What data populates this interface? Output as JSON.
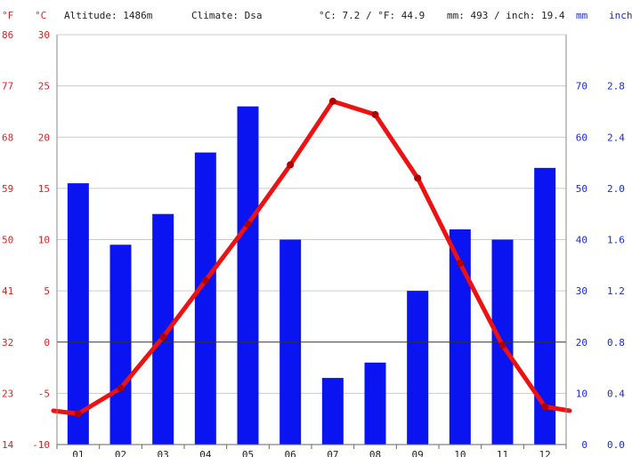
{
  "header": {
    "altitude": "Altitude: 1486m",
    "climate": "Climate: Dsa",
    "temp_avg": "°C: 7.2 / °F: 44.9",
    "precip_avg": "mm: 493 / inch: 19.4"
  },
  "axes": {
    "left_outer_unit": "°F",
    "left_inner_unit": "°C",
    "right_inner_unit": "mm",
    "right_outer_unit": "inch",
    "f_ticks": [
      "86",
      "77",
      "68",
      "59",
      "50",
      "41",
      "32",
      "23",
      "14"
    ],
    "c_ticks": [
      "30",
      "25",
      "20",
      "15",
      "10",
      "5",
      "0",
      "-5",
      "-10"
    ],
    "mm_ticks": [
      "70",
      "60",
      "50",
      "40",
      "30",
      "20",
      "10",
      "0"
    ],
    "inch_ticks": [
      "2.8",
      "2.4",
      "2.0",
      "1.6",
      "1.2",
      "0.8",
      "0.4",
      "0.0"
    ]
  },
  "chart_data": {
    "type": "bar",
    "categories": [
      "01",
      "02",
      "03",
      "04",
      "05",
      "06",
      "07",
      "08",
      "09",
      "10",
      "11",
      "12"
    ],
    "series": [
      {
        "type": "bar",
        "unit": "mm",
        "values": [
          51,
          39,
          45,
          57,
          66,
          40,
          13,
          16,
          30,
          42,
          40,
          54
        ]
      },
      {
        "type": "line",
        "unit": "°C",
        "values": [
          -7,
          -4.5,
          0.5,
          6,
          11.5,
          17.3,
          23.5,
          22.2,
          16,
          7.7,
          -0.3,
          -6.3
        ]
      }
    ],
    "ylim_c": [
      -10,
      30
    ],
    "ylim_mm": [
      0,
      80
    ],
    "colors": {
      "bars": "#0a14f0",
      "line": "#ee1111",
      "left_axis": "#dd2222",
      "right_axis": "#1a2ad0",
      "grid": "#cccccc",
      "zero_line": "#333333"
    }
  }
}
